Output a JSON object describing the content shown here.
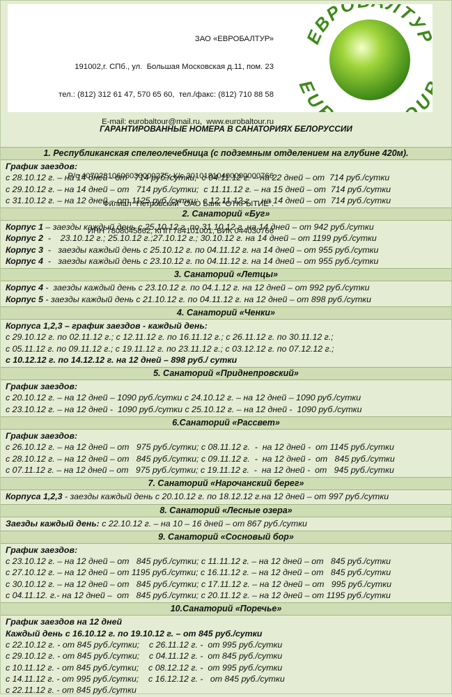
{
  "header": {
    "company": "ЗАО «ЕВРОБАЛТУР»",
    "lines": [
      "191002,г. СПб., ул.  Большая Московская д.11, пом. 23",
      "тел.: (812) 312 61 47, 570 65 60,  тел./факс: (812) 710 88 58",
      "E-mail: eurobaltour@mail.ru,  www.eurobaltour.ru"
    ],
    "bank": [
      "Р/с 40702810606030000275, К/с 30101810400000000766",
      "Филиал \"Петровский\" ОАО Банк \"ОТКРЫТИЕ\".",
      "ИНН 7808045862, КПП 784101001, БИК 044030766"
    ],
    "logo_top": "ЕВРОБАЛТУР",
    "logo_bottom": "EUROBALTOUR"
  },
  "title": "ГАРАНТИРОВАННЫЕ НОМЕРА В САНАТОРИЯХ БЕЛОРУССИИ",
  "sections": [
    {
      "heading": "1. Республиканская спелеолечебница (с подземным отделением на глубине 420м).",
      "lines": [
        {
          "bold": "График заездов:"
        },
        {
          "text": "с 28.10.12 г. – на 14 дней - от   714 руб./сутки;  с 04.11.12 г. – на 22 дней – от  714 руб./сутки"
        },
        {
          "text": "с 29.10.12 г. – на 14 дней – от   714 руб./сутки;  с 11.11.12 г. – на 15 дней – от  714 руб./сутки"
        },
        {
          "text": "с 31.10.12 г. – на 12 дней – от 1125 руб./сутки;  с 12.11.12 г. – на 14 дней – от  714 руб./сутки"
        }
      ]
    },
    {
      "heading": "2. Санаторий «Буг»",
      "lines": [
        {
          "bold": "Корпус 1",
          "text": " – заезды каждый день с 25.10.12 г. по 31.10.12 г. на 14 дней – от 942 руб./сутки"
        },
        {
          "bold": "Корпус 2",
          "text": "  -    23.10.12 г.; 25.10.12 г.;27.10.12 г.; 30.10.12 г. на 14 дней – от 1199 руб./сутки"
        },
        {
          "bold": "Корпус 3",
          "text": "  -   заезды каждый день с 25.10.12 г. по 04.11.12 г. на 14 дней – от 955 руб./сутки"
        },
        {
          "bold": "Корпус 4",
          "text": "  -   заезды каждый день с 23.10.12 г. по 04.11.12 г. на 14 дней – от 955 руб./сутки"
        }
      ]
    },
    {
      "heading": "3. Санаторий «Летцы»",
      "lines": [
        {
          "bold": "Корпус 4",
          "text": " -  заезды каждый день с 23.10.12 г. по 04.1.12 г. на 12 дней – от 992 руб./сутки"
        },
        {
          "bold": "Корпус 5",
          "text": " - заезды каждый день с 21.10.12 г. по 04.11.12 г. на 12 дней – от 898 руб./сутки"
        }
      ]
    },
    {
      "heading": "4. Санаторий «Ченки»",
      "lines": [
        {
          "bold": "Корпуса 1,2,3 – график заездов - каждый день:"
        },
        {
          "text": "с 29.10.12 г. по 02.11.12 г.; с 12.11.12 г. по 16.11.12 г.; с 26.11.12 г. по 30.11.12 г.;"
        },
        {
          "text": "с 05.11.12 г. по 09.11.12 г.; с 19.11.12 г. по 23.11.12 г.; с 03.12.12 г. по 07.12.12 г.;"
        },
        {
          "bold": "с 10.12.12 г. по 14.12.12 г. на 12 дней – 898 руб./ сутки"
        }
      ]
    },
    {
      "heading": "5. Санаторий «Приднепровский»",
      "lines": [
        {
          "bold": "График заездов:"
        },
        {
          "text": "с 20.10.12 г. – на 12 дней – 1090 руб./сутки с 24.10.12 г. – на 12 дней – 1090 руб./сутки"
        },
        {
          "text": "с 23.10.12 г. – на 12 дней -  1090 руб./сутки с 25.10.12 г. – на 12 дней -  1090 руб./сутки"
        }
      ]
    },
    {
      "heading": "6.Санаторий «Рассвет»",
      "lines": [
        {
          "bold": "График заездов:"
        },
        {
          "text": "с 26.10.12 г. – на 12 дней – от   975 руб./сутки; с 08.11.12 г.  -  на 12 дней -  от 1145 руб./сутки"
        },
        {
          "text": "с 28.10.12 г. – на 12 дней – от   845 руб./сутки; с 09.11.12 г.  -  на 12 дней -  от   845 руб./сутки"
        },
        {
          "text": "с 07.11.12 г. – на 12 дней – от   975 руб./сутки; с 19.11.12 г.  -  на 12 дней -  от   945 руб./сутки"
        }
      ]
    },
    {
      "heading": "7. Санаторий «Нарочанский берег»",
      "lines": [
        {
          "bold": "Корпуса 1,2,3",
          "text": " - заезды каждый день с 20.10.12 г. по 18.12.12 г.на 12 дней – от 997 руб./сутки"
        }
      ]
    },
    {
      "heading": "8. Санаторий «Лесные озера»",
      "lines": [
        {
          "bold": "Заезды каждый день:",
          "text": " с 22.10.12 г. – на 10 – 16 дней – от 867 руб./сутки"
        }
      ]
    },
    {
      "heading": "9. Санаторий «Сосновый бор»",
      "lines": [
        {
          "bold": "График заездов:"
        },
        {
          "text": "с 23.10.12 г. – на 12 дней – от   845 руб./сутки; с 11.11.12 г. – на 12 дней – от   845 руб./сутки"
        },
        {
          "text": "с 27.10.12 г. – на 12 дней – от 1195 руб./сутки; с 16.11.12 г. – на 12 дней – от   845 руб./сутки"
        },
        {
          "text": "с 30.10.12 г. – на 12 дней – от   845 руб./сутки; с 17.11.12 г. – на 12 дней – от   995 руб./сутки"
        },
        {
          "text": "с 04.11.12. г.- на 12 дней –  от   845 руб./сутки; с 20.11.12 г. – на 12 дней – от 1195 руб./сутки"
        }
      ]
    },
    {
      "heading": "10.Санаторий «Поречье»",
      "lines": [
        {
          "bold": "График заездов на 12 дней"
        },
        {
          "bold": "Каждый день с 16.10.12 г. по 19.10.12 г. – от 845 руб./сутки"
        },
        {
          "text": "с 22.10.12 г. - от 845 руб./сутки;    с 26.11.12 г. -  от 995 руб./сутки"
        },
        {
          "text": "с 29.10.12 г. - от 845 руб./сутки;    с 04.11.12 г. -  от 845 руб./сутки"
        },
        {
          "text": "с 10.11.12 г. - от 845 руб./сутки;    с 08.12.12 г. -  от 995 руб./сутки"
        },
        {
          "text": "с 14.11.12 г. - от 995 руб./сутки;    с 16.12.12 г. -   от 845 руб./сутки"
        },
        {
          "text": "с 22.11.12 г. - от 845 руб./сутки"
        }
      ]
    }
  ]
}
